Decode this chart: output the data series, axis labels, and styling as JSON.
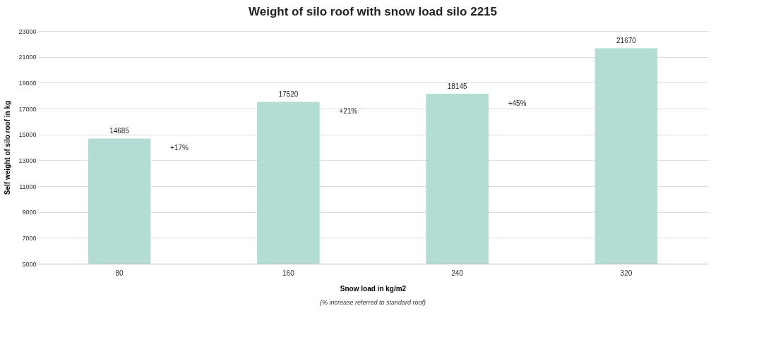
{
  "chart_data": {
    "type": "bar",
    "title": "Weight of silo roof with snow load silo 2215",
    "xlabel": "Snow load in kg/m2",
    "ylabel": "Self weight of silo roof in kg",
    "categories": [
      "80",
      "160",
      "240",
      "320"
    ],
    "values": [
      14685,
      17520,
      18145,
      21670
    ],
    "color": "#b3dcd4",
    "ylim": [
      5000,
      23000
    ],
    "yticks": [
      5000,
      7000,
      9000,
      11000,
      13000,
      15000,
      17000,
      19000,
      21000,
      23000
    ],
    "grid": "y",
    "data_labels": true,
    "annotations": [
      "+17%",
      "+21%",
      "+45%",
      "(% increase referred to standard roof)"
    ]
  }
}
